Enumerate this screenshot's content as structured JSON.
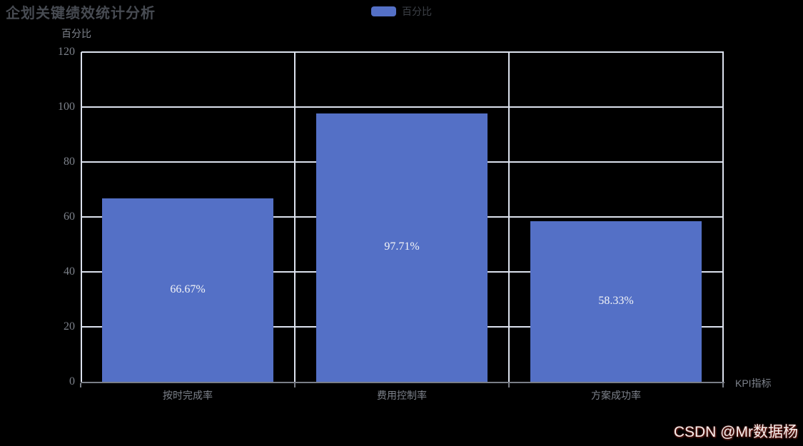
{
  "header": {
    "title": "企划关键绩效统计分析"
  },
  "legend": {
    "items": [
      {
        "label": "百分比",
        "swatch_color": "#5470C6"
      }
    ]
  },
  "chart_data": {
    "type": "bar",
    "title": "企划关键绩效统计分析",
    "categories": [
      "按时完成率",
      "费用控制率",
      "方案成功率"
    ],
    "series": [
      {
        "name": "百分比",
        "values": [
          66.67,
          97.71,
          58.33
        ],
        "value_labels": [
          "66.67%",
          "97.71%",
          "58.33%"
        ],
        "color": "#5470C6"
      }
    ],
    "xlabel": "KPI指标",
    "ylabel": "百分比",
    "ylim": [
      0,
      120
    ],
    "yticks": [
      0,
      20,
      40,
      60,
      80,
      100,
      120
    ],
    "grid": "on",
    "legend_position": "top-center",
    "value_label_position": "inside-center"
  },
  "watermark": {
    "text": "CSDN @Mr数据杨"
  },
  "colors": {
    "background": "#000000",
    "bar": "#5470C6",
    "gridline": "#dce2ee",
    "x_axis_line": "#7a7e87",
    "axis_text": "#7d828b",
    "title_text": "#474b52",
    "legend_text": "#3d4147",
    "value_label_text": "#f3f4f6"
  }
}
